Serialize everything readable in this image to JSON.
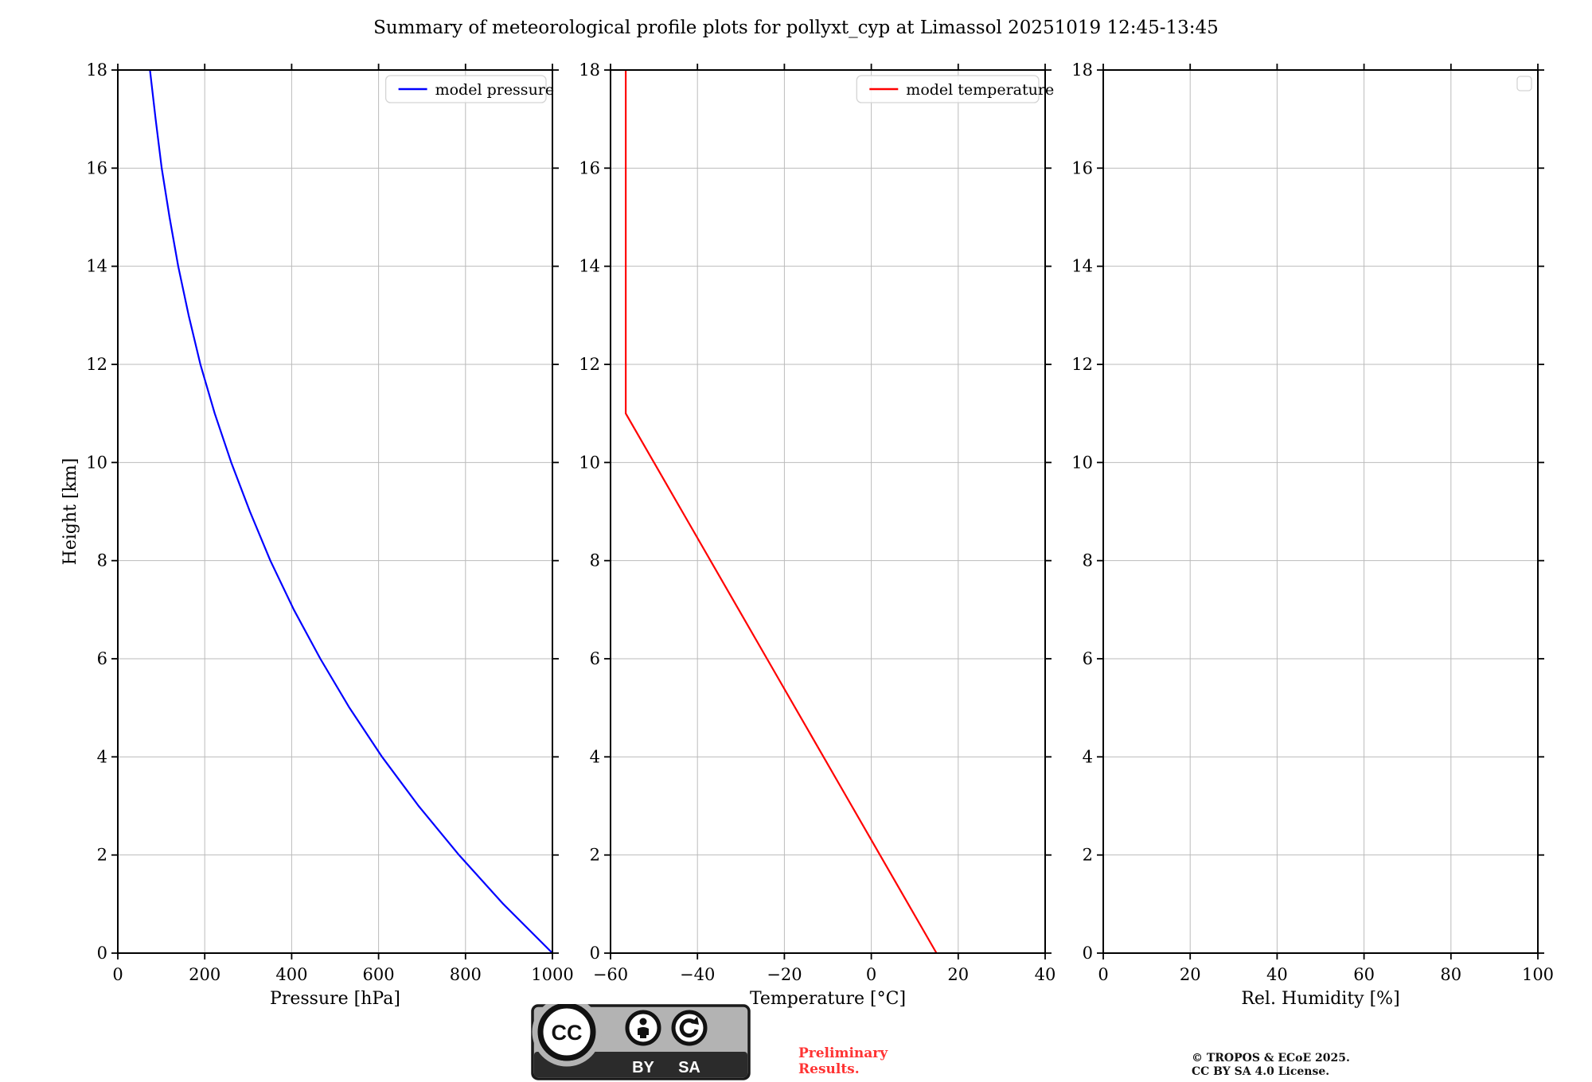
{
  "page": {
    "title": "Summary of meteorological profile plots for pollyxt_cyp at Limassol 20251019 12:45-13:45"
  },
  "colors": {
    "pressure_line": "#0000ff",
    "temperature_line": "#ff0000",
    "grid": "#bbbbbb",
    "spine": "#000000",
    "legend_border": "#d4d4d4",
    "preliminary_text": "#ff3333",
    "badge_gray": "#b3b3b3",
    "badge_dark": "#2b2b2b"
  },
  "footer": {
    "preliminary_line1": "Preliminary",
    "preliminary_line2": "Results.",
    "copyright_line1": "© TROPOS & ECoE 2025.",
    "copyright_line2": "CC BY SA 4.0 License.",
    "badge": {
      "cc": "CC",
      "by": "BY",
      "sa": "SA"
    }
  },
  "chart_data": [
    {
      "type": "line",
      "xlabel": "Pressure [hPa]",
      "ylabel": "Height [km]",
      "xlim": [
        0,
        1000
      ],
      "ylim": [
        0,
        18
      ],
      "xticks": [
        0,
        200,
        400,
        600,
        800,
        1000
      ],
      "xtick_labels": [
        "0",
        "200",
        "400",
        "600",
        "800",
        "1000"
      ],
      "yticks": [
        0,
        2,
        4,
        6,
        8,
        10,
        12,
        14,
        16,
        18
      ],
      "ytick_labels": [
        "0",
        "2",
        "4",
        "6",
        "8",
        "10",
        "12",
        "14",
        "16",
        "18"
      ],
      "grid": true,
      "legend": {
        "label": "model pressure",
        "color": "#0000ff",
        "position": "upper-right"
      },
      "series": [
        {
          "name": "model pressure",
          "color": "#0000ff",
          "x": [
            1000,
            887,
            785,
            692,
            608,
            533,
            466,
            405,
            351,
            304,
            261,
            223,
            190,
            163,
            139,
            119,
            101,
            87,
            74
          ],
          "y": [
            0,
            1,
            2,
            3,
            4,
            5,
            6,
            7,
            8,
            9,
            10,
            11,
            12,
            13,
            14,
            15,
            16,
            17,
            18
          ]
        }
      ]
    },
    {
      "type": "line",
      "xlabel": "Temperature [°C]",
      "ylabel": null,
      "xlim": [
        -60,
        40
      ],
      "ylim": [
        0,
        18
      ],
      "xticks": [
        -60,
        -40,
        -20,
        0,
        20,
        40
      ],
      "xtick_labels": [
        "−60",
        "−40",
        "−20",
        "0",
        "20",
        "40"
      ],
      "yticks": [
        0,
        2,
        4,
        6,
        8,
        10,
        12,
        14,
        16,
        18
      ],
      "ytick_labels": [
        "0",
        "2",
        "4",
        "6",
        "8",
        "10",
        "12",
        "14",
        "16",
        "18"
      ],
      "grid": true,
      "legend": {
        "label": "model temperature",
        "color": "#ff0000",
        "position": "upper-right"
      },
      "series": [
        {
          "name": "model temperature",
          "color": "#ff0000",
          "x": [
            15,
            8.5,
            2,
            -4.5,
            -11,
            -17.5,
            -24,
            -30.5,
            -37,
            -43.5,
            -50,
            -56.5,
            -56.5,
            -56.5,
            -56.5,
            -56.5,
            -56.5,
            -56.5,
            -56.5
          ],
          "y": [
            0,
            1,
            2,
            3,
            4,
            5,
            6,
            7,
            8,
            9,
            10,
            11,
            12,
            13,
            14,
            15,
            16,
            17,
            18
          ]
        }
      ]
    },
    {
      "type": "line",
      "xlabel": "Rel. Humidity [%]",
      "ylabel": null,
      "xlim": [
        0,
        100
      ],
      "ylim": [
        0,
        18
      ],
      "xticks": [
        0,
        20,
        40,
        60,
        80,
        100
      ],
      "xtick_labels": [
        "0",
        "20",
        "40",
        "60",
        "80",
        "100"
      ],
      "yticks": [
        0,
        2,
        4,
        6,
        8,
        10,
        12,
        14,
        16,
        18
      ],
      "ytick_labels": [
        "0",
        "2",
        "4",
        "6",
        "8",
        "10",
        "12",
        "14",
        "16",
        "18"
      ],
      "grid": true,
      "legend": {
        "empty": true
      },
      "series": []
    }
  ]
}
